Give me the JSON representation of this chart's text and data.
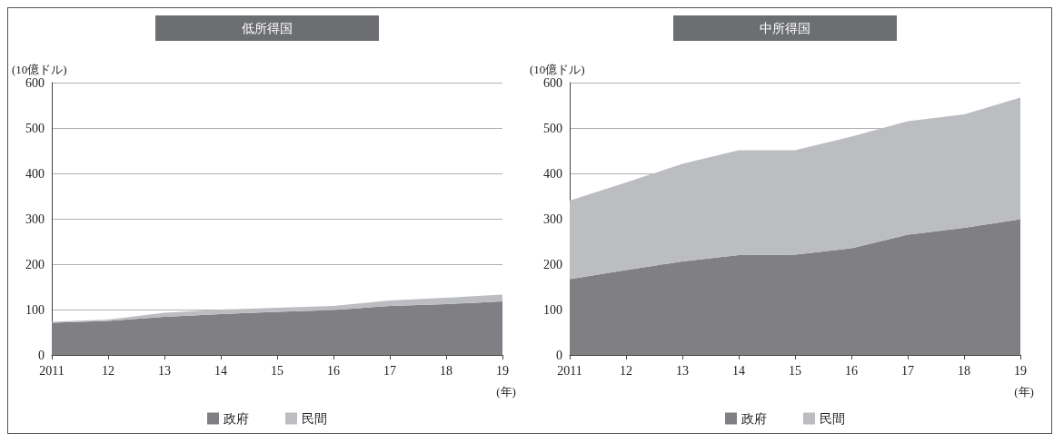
{
  "chart_data": [
    {
      "type": "area",
      "stacked": true,
      "title": "低所得国",
      "ylabel": "(10億ドル)",
      "xlabel": "(年)",
      "categories": [
        "2011",
        "12",
        "13",
        "14",
        "15",
        "16",
        "17",
        "18",
        "19"
      ],
      "ylim": [
        0,
        600
      ],
      "yticks": [
        0,
        100,
        200,
        300,
        400,
        500,
        600
      ],
      "grid": "y",
      "legend": "bottom",
      "series": [
        {
          "name": "政府",
          "color": "#808084",
          "values": [
            71,
            75,
            84,
            90,
            95,
            99,
            108,
            112,
            118
          ]
        },
        {
          "name": "民間",
          "color": "#bcbdc1",
          "values": [
            2,
            3,
            9,
            10,
            9,
            9,
            12,
            14,
            15
          ]
        }
      ]
    },
    {
      "type": "area",
      "stacked": true,
      "title": "中所得国",
      "ylabel": "(10億ドル)",
      "xlabel": "(年)",
      "categories": [
        "2011",
        "12",
        "13",
        "14",
        "15",
        "16",
        "17",
        "18",
        "19"
      ],
      "ylim": [
        0,
        600
      ],
      "yticks": [
        0,
        100,
        200,
        300,
        400,
        500,
        600
      ],
      "grid": "y",
      "legend": "bottom",
      "series": [
        {
          "name": "政府",
          "color": "#808084",
          "values": [
            167,
            187,
            206,
            220,
            221,
            235,
            265,
            280,
            299
          ]
        },
        {
          "name": "民間",
          "color": "#bcbdc1",
          "values": [
            173,
            193,
            215,
            231,
            230,
            246,
            250,
            250,
            268
          ]
        }
      ]
    }
  ]
}
